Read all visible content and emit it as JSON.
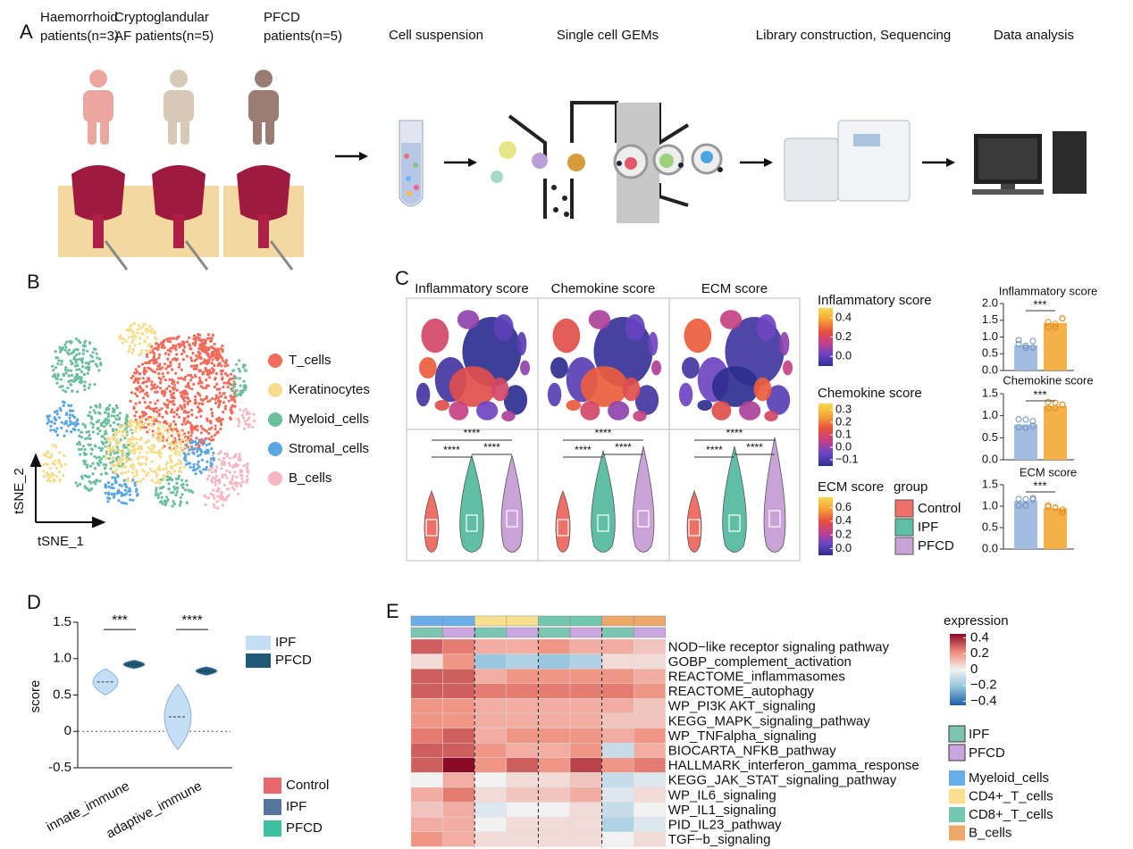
{
  "panel_a": {
    "label": "A",
    "patients": [
      {
        "lines": [
          "Haemorrhoid",
          "patients(n=3)"
        ],
        "color": "#eba6a0"
      },
      {
        "lines": [
          "Cryptoglandular",
          "AF patients(n=5)"
        ],
        "color": "#d7c9b6"
      },
      {
        "lines": [
          "PFCD",
          "patients(n=5)"
        ],
        "color": "#9a7c72"
      }
    ],
    "steps": [
      "Cell suspension",
      "Single cell GEMs",
      "Library construction, Sequencing",
      "Data analysis"
    ]
  },
  "panel_b": {
    "label": "B",
    "legend": [
      {
        "name": "T_cells",
        "color": "#f26b5b"
      },
      {
        "name": "Keratinocytes",
        "color": "#f6dd8c"
      },
      {
        "name": "Myeloid_cells",
        "color": "#6cbf9e"
      },
      {
        "name": "Stromal_cells",
        "color": "#5aa6e0"
      },
      {
        "name": "B_cells",
        "color": "#f5b7c2"
      }
    ],
    "x_label": "tSNE_1",
    "y_label": "tSNE_2"
  },
  "panel_c": {
    "label": "C",
    "colormap": [
      "#2e2f8f",
      "#6b45c4",
      "#c2408a",
      "#e8513c",
      "#f4a43a",
      "#f8d94c"
    ],
    "maps": [
      {
        "title": "Inflammatory score",
        "significance": [
          "****",
          "****",
          "****"
        ]
      },
      {
        "title": "Chemokine score",
        "significance": [
          "****",
          "****",
          "****"
        ]
      },
      {
        "title": "ECM score",
        "significance": [
          "****",
          "****",
          "****"
        ]
      }
    ],
    "colorbars": [
      {
        "title": "Inflammatory score",
        "lim": [
          -0.1,
          0.5
        ],
        "ticks": [
          0.4,
          0.2,
          {
            "value": 0,
            "label": "0.0"
          }
        ]
      },
      {
        "title": "Chemokine score",
        "lim": [
          -0.15,
          0.35
        ],
        "ticks": [
          0.3,
          0.2,
          0.1,
          {
            "value": 0,
            "label": "0.0"
          },
          {
            "value": -0.1,
            "label": "−0.1"
          }
        ]
      },
      {
        "title": "ECM score",
        "lim": [
          -0.1,
          0.75
        ],
        "ticks": [
          0.6,
          0.4,
          0.2,
          {
            "value": 0,
            "label": "0.0"
          }
        ]
      }
    ],
    "group_legend": {
      "title": "group",
      "items": [
        {
          "name": "Control",
          "color": "#ef7066"
        },
        {
          "name": "IPF",
          "color": "#5fbfa6"
        },
        {
          "name": "PFCD",
          "color": "#c9a2d8"
        }
      ]
    },
    "bar_charts": [
      {
        "title": "Inflammatory score",
        "values": [
          0.75,
          1.42
        ],
        "colors": [
          "#a3bde0",
          "#f5b04a"
        ],
        "ylim": [
          0,
          2
        ],
        "yticks": [
          {
            "value": 0,
            "label": "0.0"
          },
          0.5,
          {
            "value": 1,
            "label": "1.0"
          },
          1.5,
          {
            "value": 2,
            "label": "2.0"
          }
        ],
        "significance": "***"
      },
      {
        "title": "Chemokine score",
        "values": [
          0.8,
          1.22
        ],
        "colors": [
          "#a3bde0",
          "#f5b04a"
        ],
        "ylim": [
          0,
          1.5
        ],
        "yticks": [
          {
            "value": 0,
            "label": "0.0"
          },
          0.5,
          {
            "value": 1,
            "label": "1.0"
          },
          1.5
        ],
        "significance": "***"
      },
      {
        "title": "ECM score",
        "values": [
          1.12,
          0.95
        ],
        "colors": [
          "#a3bde0",
          "#f5b04a"
        ],
        "ylim": [
          0,
          1.5
        ],
        "yticks": [
          {
            "value": 0,
            "label": "0.0"
          },
          0.5,
          {
            "value": 1,
            "label": "1.0"
          },
          1.5
        ],
        "significance": "***"
      }
    ]
  },
  "panel_d": {
    "label": "D",
    "chart_data": {
      "type": "violin",
      "y_label": "score",
      "categories": [
        "innate_immune",
        "adaptive_immune"
      ],
      "series": [
        {
          "name": "IPF",
          "color": "#c6ddf6",
          "values": [
            0.68,
            0.2
          ]
        },
        {
          "name": "PFCD",
          "color": "#1f5a78",
          "values": [
            0.92,
            0.83
          ]
        }
      ],
      "significance": [
        "***",
        "****"
      ],
      "ylim": [
        -0.5,
        1.5
      ],
      "yticks": [
        1.5,
        {
          "value": 1,
          "label": "1.0"
        },
        0.5,
        0,
        -0.5
      ],
      "second_legend": [
        {
          "name": "Control",
          "color": "#e8686e"
        },
        {
          "name": "IPF",
          "color": "#5676a0"
        },
        {
          "name": "PFCD",
          "color": "#3cc0a0"
        }
      ]
    }
  },
  "panel_e": {
    "label": "E",
    "heatmap": {
      "rows": [
        {
          "label": "NOD−like receptor signaling pathway",
          "color": "#111111",
          "values": [
            0.3,
            0.25,
            0.15,
            0.15,
            0.2,
            0.15,
            0.15,
            0.1
          ]
        },
        {
          "label": "GOBP_complement_activation",
          "color": "#111111",
          "values": [
            0.05,
            0.2,
            -0.2,
            -0.15,
            -0.2,
            -0.15,
            0.05,
            0.05
          ]
        },
        {
          "label": "REACTOME_inflammasomes",
          "color": "#111111",
          "values": [
            0.3,
            0.3,
            0.15,
            0.2,
            0.2,
            0.2,
            0.2,
            0.15
          ]
        },
        {
          "label": "REACTOME_autophagy",
          "color": "#111111",
          "values": [
            0.3,
            0.3,
            0.25,
            0.25,
            0.25,
            0.25,
            0.25,
            0.2
          ]
        },
        {
          "label": "WP_PI3K AKT_signaling",
          "color": "#111111",
          "values": [
            0.2,
            0.2,
            0.15,
            0.15,
            0.15,
            0.15,
            0.15,
            0.1
          ]
        },
        {
          "label": "KEGG_MAPK_signaling_pathway",
          "color": "#111111",
          "values": [
            0.2,
            0.2,
            0.15,
            0.15,
            0.15,
            0.15,
            0.1,
            0.1
          ]
        },
        {
          "label": "WP_TNFalpha_signaling",
          "color": "#e0201c",
          "values": [
            0.25,
            0.3,
            0.15,
            0.2,
            0.2,
            0.2,
            0.15,
            0.2
          ]
        },
        {
          "label": "BIOCARTA_NFKB_pathway",
          "color": "#e0201c",
          "values": [
            0.3,
            0.3,
            0.2,
            0.15,
            0.15,
            0.2,
            -0.1,
            0.15
          ]
        },
        {
          "label": "HALLMARK_interferon_gamma_response",
          "color": "#e0201c",
          "values": [
            0.3,
            0.45,
            0.2,
            0.3,
            0.2,
            0.35,
            0.2,
            0.25
          ]
        },
        {
          "label": "KEGG_JAK_STAT_signaling_pathway",
          "color": "#e0201c",
          "values": [
            0.0,
            0.15,
            0.0,
            0.05,
            0.05,
            0.1,
            -0.1,
            -0.05
          ]
        },
        {
          "label": "WP_IL6_signaling",
          "color": "#111111",
          "values": [
            0.15,
            0.25,
            0.05,
            0.1,
            0.1,
            0.15,
            -0.05,
            0.05
          ]
        },
        {
          "label": "WP_IL1_signaling",
          "color": "#111111",
          "values": [
            0.1,
            0.15,
            -0.05,
            0.0,
            0.0,
            0.05,
            -0.1,
            0.0
          ]
        },
        {
          "label": "PID_IL23_pathway",
          "color": "#111111",
          "values": [
            0.15,
            0.15,
            0.0,
            0.05,
            0.05,
            0.05,
            -0.15,
            -0.05
          ]
        },
        {
          "label": "TGF−b_signaling",
          "color": "#111111",
          "values": [
            0.2,
            0.15,
            0.05,
            0.05,
            0.05,
            0.05,
            0.0,
            0.05
          ]
        }
      ],
      "column_cell_types": [
        "Myeloid_cells",
        "Myeloid_cells",
        "CD4+_T_cells",
        "CD4+_T_cells",
        "CD8+_T_cells",
        "CD8+_T_cells",
        "B_cells",
        "B_cells"
      ],
      "column_groups": [
        "IPF",
        "PFCD",
        "IPF",
        "PFCD",
        "IPF",
        "PFCD",
        "IPF",
        "PFCD"
      ],
      "colors": [
        "#1f5fa6",
        "#8fc2de",
        "#f2f2f2",
        "#f08a7a",
        "#8b0a25"
      ],
      "colorbar": {
        "title": "expression",
        "lim": [
          -0.45,
          0.45
        ],
        "ticks": [
          0.4,
          0.2,
          0,
          {
            "value": -0.2,
            "label": "−0.2"
          },
          {
            "value": -0.4,
            "label": "−0.4"
          }
        ]
      },
      "group_legend": [
        {
          "name": "IPF",
          "color": "#7cc5b0"
        },
        {
          "name": "PFCD",
          "color": "#c9a6dd"
        }
      ],
      "cell_type_legend": [
        {
          "name": "Myeloid_cells",
          "color": "#6aaee8"
        },
        {
          "name": "CD4+_T_cells",
          "color": "#f9e08f"
        },
        {
          "name": "CD8+_T_cells",
          "color": "#73c7b0"
        },
        {
          "name": "B_cells",
          "color": "#eda96a"
        }
      ]
    }
  }
}
